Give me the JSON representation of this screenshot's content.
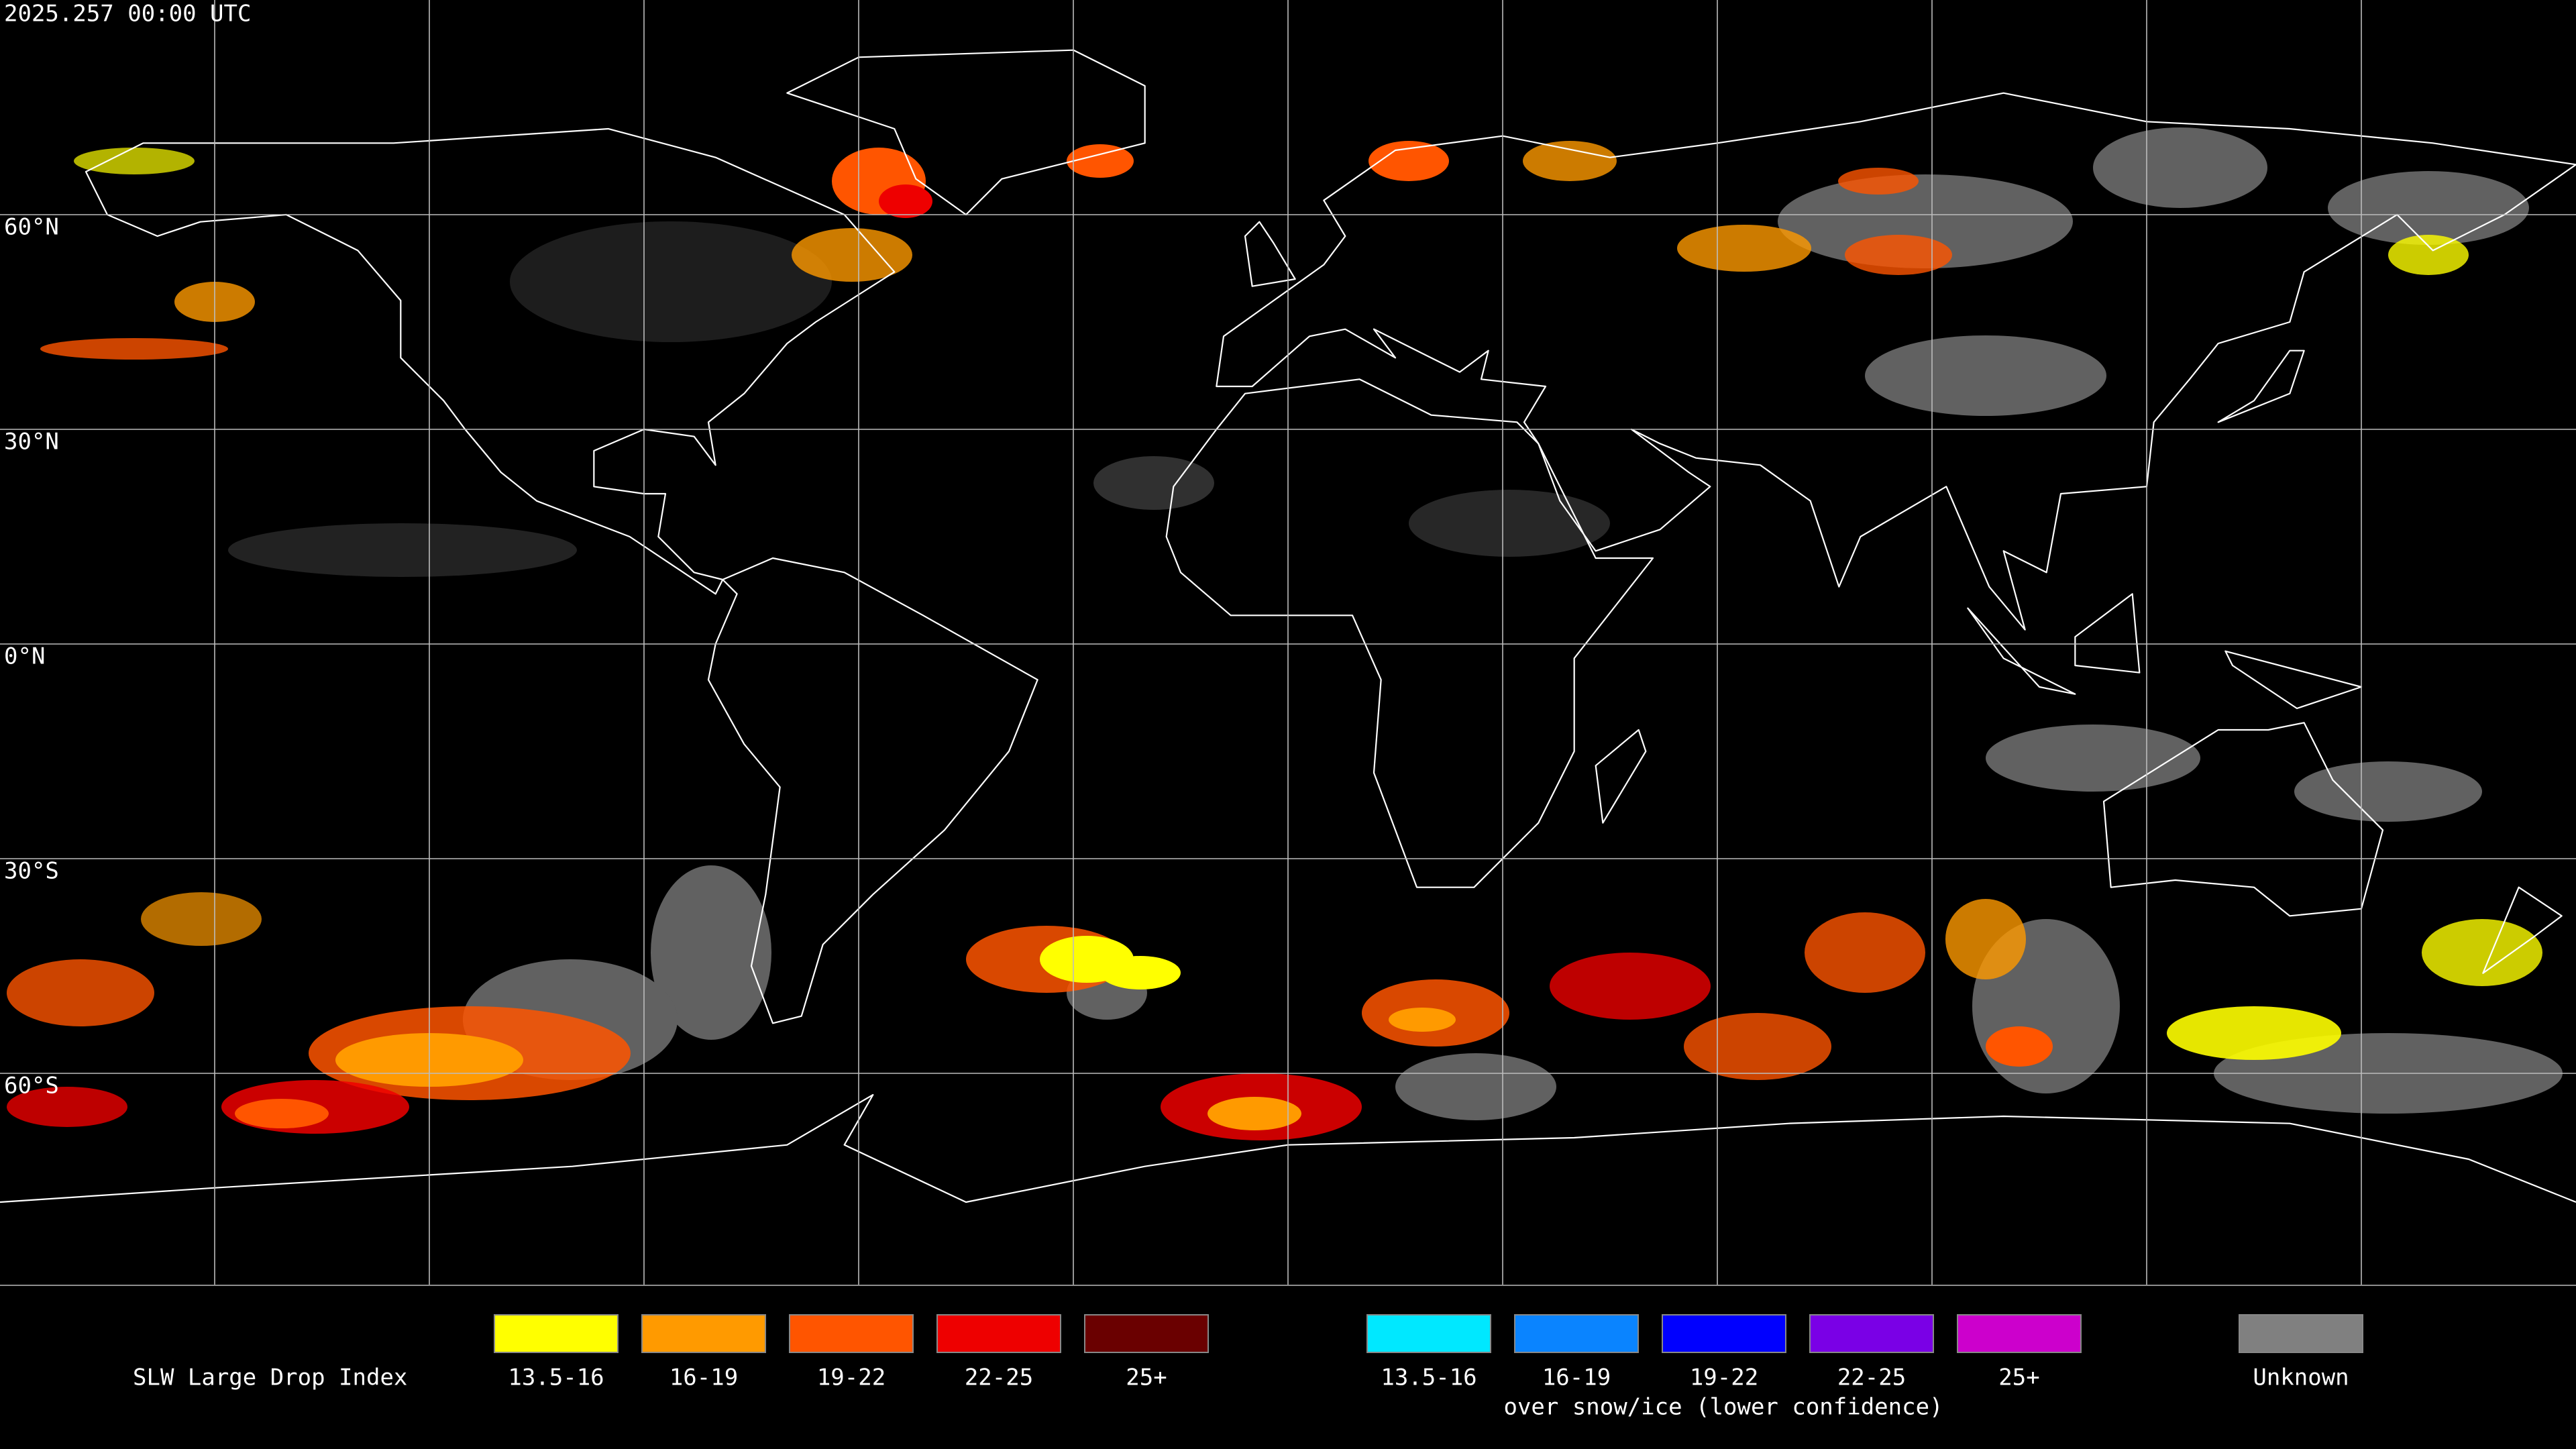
{
  "timestamp": "2025.257 00:00 UTC",
  "latitude_labels": [
    "60°N",
    "30°N",
    "0°N",
    "30°S",
    "60°S"
  ],
  "legend": {
    "title": "SLW Large Drop Index",
    "classes": [
      {
        "label": "13.5-16",
        "color": "#ffff00"
      },
      {
        "label": "16-19",
        "color": "#ff9a00"
      },
      {
        "label": "19-22",
        "color": "#ff5500"
      },
      {
        "label": "22-25",
        "color": "#ee0000"
      },
      {
        "label": "25+",
        "color": "#6a0000"
      }
    ],
    "snow_classes": [
      {
        "label": "13.5-16",
        "color": "#00e8ff"
      },
      {
        "label": "16-19",
        "color": "#0a84ff"
      },
      {
        "label": "19-22",
        "color": "#0000ff"
      },
      {
        "label": "22-25",
        "color": "#7a00e6"
      },
      {
        "label": "25+",
        "color": "#cc00cc"
      }
    ],
    "snow_caption": "over snow/ice (lower confidence)",
    "unknown": {
      "label": "Unknown",
      "color": "#808080"
    }
  }
}
